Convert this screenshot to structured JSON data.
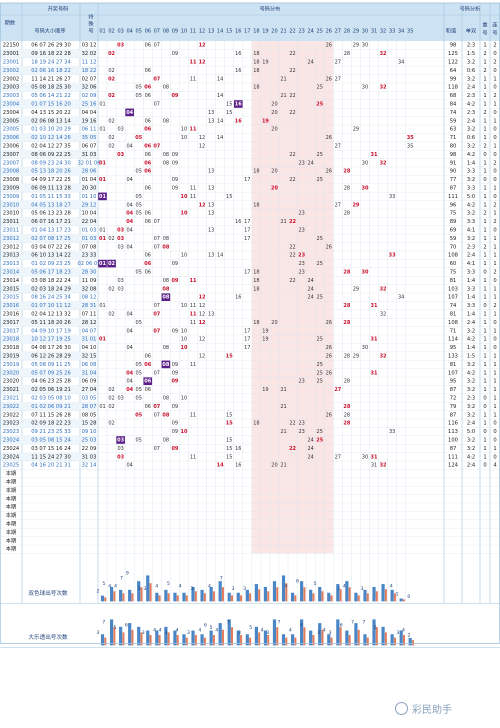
{
  "header": {
    "kaijiang": "开奖号码",
    "fenbu": "号码分布",
    "fenxi": "号码分析",
    "qishu": "期数",
    "daxiao": "号码大小顺序",
    "teshu": "特殊号",
    "hezhi": "和值",
    "danshuang": "单双",
    "chong": "重号",
    "lian": "连号"
  },
  "numbers": [
    "01",
    "02",
    "03",
    "04",
    "05",
    "06",
    "07",
    "08",
    "09",
    "10",
    "11",
    "12",
    "13",
    "14",
    "15",
    "16",
    "17",
    "18",
    "19",
    "20",
    "21",
    "22",
    "23",
    "24",
    "25",
    "26",
    "27",
    "28",
    "29",
    "30",
    "31",
    "32",
    "33",
    "34",
    "35"
  ],
  "rows": [
    {
      "p": "22150",
      "m": "06 07 26 29 30",
      "s": "03 12",
      "h": "98",
      "d": "2:3",
      "c": "1",
      "l": "2"
    },
    {
      "p": "23001",
      "m": "09 16 18 22 28",
      "s": "32 02",
      "h": "125",
      "d": "1:5",
      "c": "2",
      "l": "0"
    },
    {
      "p": "23001",
      "m": "18 19 24 27 34",
      "s": "11 12",
      "h": "122",
      "d": "3:2",
      "c": "1",
      "l": "2"
    },
    {
      "p": "23002",
      "m": "02 06 16 18 22",
      "s": "18 22",
      "h": "64",
      "d": "0:6",
      "c": "2",
      "l": "0"
    },
    {
      "p": "23002",
      "m": "11 14 21 26 27",
      "s": "02 07",
      "h": "99",
      "d": "3:2",
      "c": "1",
      "l": "1"
    },
    {
      "p": "23003",
      "m": "05 08 18 25 30",
      "s": "32 06",
      "h": "118",
      "d": "2:4",
      "c": "1",
      "l": "0"
    },
    {
      "p": "23003",
      "m": "05 06 14 21 22",
      "s": "02 09",
      "h": "68",
      "d": "2:3",
      "c": "1",
      "l": "2"
    },
    {
      "p": "23004",
      "m": "01 07 15 16 20",
      "s": "25 16",
      "h": "84",
      "d": "4:2",
      "c": "1",
      "l": "1"
    },
    {
      "p": "23004",
      "m": "04 13 15 20 22",
      "s": "04 04",
      "h": "74",
      "d": "2:3",
      "c": "2",
      "l": "0"
    },
    {
      "p": "23005",
      "m": "02 06 08 13 14",
      "s": "19 16",
      "h": "59",
      "d": "2:4",
      "c": "1",
      "l": "1"
    },
    {
      "p": "23005",
      "m": "01 03 10 20 29",
      "s": "06 11",
      "h": "63",
      "d": "3:2",
      "c": "1",
      "l": "0"
    },
    {
      "p": "23006",
      "m": "02 10 12 14 26",
      "s": "35 05",
      "h": "71",
      "d": "0:6",
      "c": "1",
      "l": "0"
    },
    {
      "p": "23006",
      "m": "02 04 12 27 35",
      "s": "06 07",
      "h": "80",
      "d": "3:2",
      "c": "2",
      "l": "1"
    },
    {
      "p": "23007",
      "m": "08 06 09 22 25",
      "s": "31 03",
      "h": "98",
      "d": "4:2",
      "c": "0",
      "l": "0"
    },
    {
      "p": "23007",
      "m": "08 09 23 24 30",
      "s": "32 01 06",
      "h": "91",
      "d": "1:4",
      "c": "1",
      "l": "2"
    },
    {
      "p": "23008",
      "m": "05 13 18 20 26",
      "s": "28 06",
      "h": "90",
      "d": "3:3",
      "c": "1",
      "l": "0"
    },
    {
      "p": "23008",
      "m": "04 09 17 22 25",
      "s": "01 04",
      "h": "77",
      "d": "3:2",
      "c": "0",
      "l": "0"
    },
    {
      "p": "23009",
      "m": "06 09 11 13 28",
      "s": "20 30",
      "h": "87",
      "d": "3:3",
      "c": "1",
      "l": "1"
    },
    {
      "p": "23009",
      "m": "01 05 11 15 33",
      "s": "01 10",
      "h": "111",
      "d": "5:0",
      "c": "1",
      "l": "0"
    },
    {
      "p": "23010",
      "m": "04 05 13 18 27",
      "s": "29 12",
      "h": "96",
      "d": "4:2",
      "c": "1",
      "l": "2"
    },
    {
      "p": "23010",
      "m": "05 06 13 23 28",
      "s": "10 04",
      "h": "75",
      "d": "3:2",
      "c": "2",
      "l": "1"
    },
    {
      "p": "23011",
      "m": "06 07 16 17 21",
      "s": "22 04",
      "h": "89",
      "d": "3:3",
      "c": "1",
      "l": "2"
    },
    {
      "p": "23011",
      "m": "01 04 13 17 23",
      "s": "01 03",
      "h": "69",
      "d": "4:1",
      "c": "1",
      "l": "0"
    },
    {
      "p": "23012",
      "m": "02 07 08 17 25",
      "s": "01 03",
      "h": "59",
      "d": "3:2",
      "c": "1",
      "l": "1"
    },
    {
      "p": "23012",
      "m": "03 04 07 22 26",
      "s": "07 08",
      "h": "70",
      "d": "2:3",
      "c": "2",
      "l": "1"
    },
    {
      "p": "23013",
      "m": "06 10 13 14 22",
      "s": "23 33",
      "h": "108",
      "d": "2:4",
      "c": "1",
      "l": "1"
    },
    {
      "p": "23013",
      "m": "01 02 09 23 25",
      "s": "02 06 01",
      "h": "60",
      "d": "4:1",
      "c": "1",
      "l": "1"
    },
    {
      "p": "23014",
      "m": "05 06 17 18 23",
      "s": "28 30",
      "h": "75",
      "d": "3:3",
      "c": "0",
      "l": "2"
    },
    {
      "p": "23014",
      "m": "03 08 18 22 24",
      "s": "11 09",
      "h": "81",
      "d": "1:4",
      "c": "1",
      "l": "0"
    },
    {
      "p": "23015",
      "m": "02 03 18 24 29",
      "s": "32 08",
      "h": "103",
      "d": "3:3",
      "c": "1",
      "l": "1"
    },
    {
      "p": "23015",
      "m": "08 16 24 25 34",
      "s": "08 12",
      "h": "107",
      "d": "1:4",
      "c": "1",
      "l": "1"
    },
    {
      "p": "23016",
      "m": "01 07 10 11 12",
      "s": "28 31",
      "h": "74",
      "d": "3:3",
      "c": "0",
      "l": "2"
    },
    {
      "p": "23016",
      "m": "02 04 12 13 32",
      "s": "07 11",
      "h": "81",
      "d": "1:4",
      "c": "1",
      "l": "1"
    },
    {
      "p": "23017",
      "m": "05 11 18 20 26",
      "s": "28 12",
      "h": "108",
      "d": "2:4",
      "c": "1",
      "l": "0"
    },
    {
      "p": "23017",
      "m": "04 09 10 17 19",
      "s": "04 07",
      "h": "71",
      "d": "3:2",
      "c": "1",
      "l": "1"
    },
    {
      "p": "23018",
      "m": "10 12 17 19 25",
      "s": "31 01",
      "h": "114",
      "d": "4:2",
      "c": "1",
      "l": "0"
    },
    {
      "p": "23018",
      "m": "04 08 17 26 30",
      "s": "04 10",
      "h": "95",
      "d": "1:4",
      "c": "1",
      "l": "0"
    },
    {
      "p": "23019",
      "m": "06 12 26 28 29",
      "s": "32 15",
      "h": "133",
      "d": "1:5",
      "c": "1",
      "l": "1"
    },
    {
      "p": "23019",
      "m": "05 08 09 11 25",
      "s": "06 08",
      "h": "81",
      "d": "3:2",
      "c": "1",
      "l": "1"
    },
    {
      "p": "23020",
      "m": "05 07 09 25 26",
      "s": "31 04",
      "h": "107",
      "d": "4:2",
      "c": "1",
      "l": "1"
    },
    {
      "p": "23020",
      "m": "04 06 23 25 28",
      "s": "06 09",
      "h": "95",
      "d": "3:2",
      "c": "1",
      "l": "1"
    },
    {
      "p": "23021",
      "m": "02 05 06 19 21",
      "s": "27 04",
      "h": "87",
      "d": "3:2",
      "c": "1",
      "l": "1"
    },
    {
      "p": "23021",
      "m": "02 03 05 08 10",
      "s": "03 05",
      "h": "72",
      "d": "2:3",
      "c": "0",
      "l": "1"
    },
    {
      "p": "23022",
      "m": "01 02 06 09 21",
      "s": "28 07",
      "h": "79",
      "d": "3:2",
      "c": "0",
      "l": "1"
    },
    {
      "p": "23022",
      "m": "07 11 15 26 28",
      "s": "08 05",
      "h": "87",
      "d": "3:2",
      "c": "1",
      "l": "1"
    },
    {
      "p": "23023",
      "m": "02 09 18 22 23",
      "s": "15 28",
      "h": "116",
      "d": "2:4",
      "c": "1",
      "l": "0"
    },
    {
      "p": "23023",
      "m": "09 21 23 25 33",
      "s": "09 10",
      "h": "113",
      "d": "5:0",
      "c": "0",
      "l": "0"
    },
    {
      "p": "23024",
      "m": "03 05 08 15 24",
      "s": "25 03",
      "h": "100",
      "d": "3:2",
      "c": "1",
      "l": "0"
    },
    {
      "p": "23024",
      "m": "03 07 15 16 24",
      "s": "22 09",
      "h": "87",
      "d": "3:2",
      "c": "1",
      "l": "1"
    },
    {
      "p": "23024",
      "m": "11 15 24 27 30",
      "s": "31 03",
      "h": "111",
      "d": "4:2",
      "c": "1",
      "l": "0"
    },
    {
      "p": "23025",
      "m": "04 16 20 21 31",
      "s": "32 14",
      "h": "124",
      "d": "2:4",
      "c": "0",
      "l": "4"
    }
  ],
  "future_label": "本期",
  "future_rows": 10,
  "ssq_label": "双色球出号次数",
  "dlt_label": "大乐透出号次数",
  "ssq_counts": [
    2,
    5,
    4,
    4,
    7,
    9,
    3,
    4,
    3,
    3,
    5,
    4,
    5,
    7,
    3,
    3,
    4,
    6,
    5,
    7,
    9,
    3,
    7,
    4,
    5,
    3,
    6,
    7,
    3,
    4,
    5,
    6,
    4,
    1,
    0
  ],
  "dlt_counts": [
    3,
    7,
    5,
    6,
    5,
    4,
    4,
    5,
    4,
    3,
    4,
    3,
    4,
    6,
    7,
    4,
    3,
    5,
    4,
    7,
    3,
    3,
    7,
    4,
    6,
    3,
    7,
    4,
    6,
    3,
    7,
    5,
    3,
    4,
    2
  ],
  "ssq_shown": [
    "2",
    "5",
    "4",
    "4",
    "7",
    "9",
    "",
    "3",
    "3",
    "",
    "4",
    "",
    "5",
    "",
    "4",
    "",
    "3",
    "",
    "",
    "4",
    "",
    "7",
    "",
    "3",
    "",
    "3",
    "",
    "",
    "",
    "",
    "",
    "",
    "4",
    "",
    "6",
    "",
    "",
    "5",
    "",
    "",
    "",
    "3",
    "4",
    "",
    "",
    "3",
    "",
    "",
    "",
    "",
    "4",
    "1",
    "",
    "0"
  ],
  "dlt_shown": [
    "3",
    "7",
    "",
    "5",
    "",
    "6",
    "",
    "",
    "3",
    "",
    "4",
    "4",
    "3",
    "",
    "4",
    "",
    "3",
    "",
    "4",
    "6",
    "5",
    "4",
    "",
    "7",
    "",
    "3",
    "",
    "5",
    "",
    "4",
    "3",
    "",
    "7",
    "",
    "4",
    "",
    "6",
    "",
    "",
    "3",
    "4",
    "3",
    "",
    "6",
    "",
    "7",
    "",
    "7",
    "",
    "5",
    "",
    "",
    "",
    "3",
    "4",
    "2"
  ],
  "watermark": "彩民助手",
  "colors": {
    "header": "#cde3f3",
    "border": "#9fc3de",
    "red": "#c8102e",
    "purple": "#5b1e86",
    "zone": "#fbe6e6",
    "alt": "#eef5fb"
  }
}
